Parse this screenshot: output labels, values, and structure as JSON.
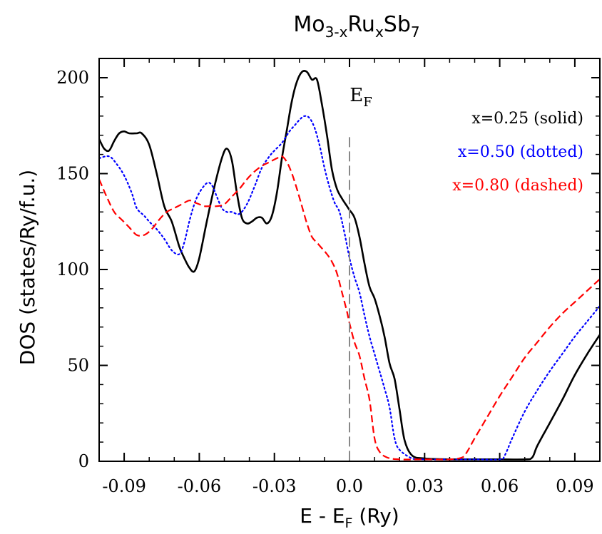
{
  "chart_data": {
    "type": "line",
    "title": {
      "base": "Mo",
      "sub1": "3-x",
      "mid": "Ru",
      "sub2": "x",
      "end": "Sb",
      "sub3": "7"
    },
    "xlabel": {
      "main": "E - E",
      "sub": "F",
      "unit": " (Ry)"
    },
    "ylabel": "DOS (states/Ry/f.u.)",
    "xlim": [
      -0.1,
      0.1
    ],
    "ylim": [
      0,
      210
    ],
    "xticks": [
      "-0.09",
      "-0.06",
      "-0.03",
      "0.0",
      "0.03",
      "0.06",
      "0.09"
    ],
    "yticks": [
      "0",
      "50",
      "100",
      "150",
      "200"
    ],
    "grid": false,
    "annotation": {
      "main": "E",
      "sub": "F",
      "x": 0.0
    },
    "legend_placement": "top-right",
    "legend": [
      {
        "text": "x=0.25 (solid)",
        "color": "#000000"
      },
      {
        "text": "x=0.50 (dotted)",
        "color": "#0000ff"
      },
      {
        "text": "x=0.80 (dashed)",
        "color": "#ff0000"
      }
    ],
    "series": [
      {
        "name": "x=0.25 (solid)",
        "color": "#000000",
        "style": "solid",
        "x": [
          -0.1,
          -0.098,
          -0.096,
          -0.094,
          -0.092,
          -0.09,
          -0.088,
          -0.085,
          -0.083,
          -0.08,
          -0.077,
          -0.074,
          -0.071,
          -0.068,
          -0.066,
          -0.064,
          -0.062,
          -0.06,
          -0.057,
          -0.054,
          -0.051,
          -0.049,
          -0.047,
          -0.045,
          -0.043,
          -0.041,
          -0.039,
          -0.037,
          -0.035,
          -0.033,
          -0.031,
          -0.029,
          -0.027,
          -0.025,
          -0.023,
          -0.021,
          -0.019,
          -0.017,
          -0.015,
          -0.013,
          -0.011,
          -0.009,
          -0.007,
          -0.005,
          -0.003,
          -0.001,
          0.0,
          0.002,
          0.004,
          0.006,
          0.008,
          0.01,
          0.012,
          0.014,
          0.016,
          0.018,
          0.02,
          0.022,
          0.025,
          0.03,
          0.04,
          0.05,
          0.06,
          0.07,
          0.073,
          0.075,
          0.08,
          0.085,
          0.09,
          0.095,
          0.1
        ],
        "y": [
          168,
          163,
          162,
          167,
          171,
          172,
          171,
          171,
          171,
          165,
          150,
          133,
          125,
          112,
          106,
          101,
          99,
          106,
          125,
          143,
          158,
          163,
          157,
          140,
          127,
          124,
          125,
          127,
          127,
          124,
          128,
          140,
          158,
          173,
          188,
          198,
          203,
          203,
          199,
          199,
          186,
          170,
          152,
          142,
          137,
          133,
          131,
          127,
          117,
          103,
          91,
          85,
          76,
          65,
          51,
          43,
          27,
          11,
          3,
          1.5,
          1,
          1,
          1,
          1,
          2,
          8,
          20,
          32,
          45,
          56,
          66
        ]
      },
      {
        "name": "x=0.50 (dotted)",
        "color": "#0000ff",
        "style": "dotted",
        "x": [
          -0.1,
          -0.096,
          -0.093,
          -0.09,
          -0.087,
          -0.085,
          -0.082,
          -0.08,
          -0.077,
          -0.074,
          -0.071,
          -0.068,
          -0.066,
          -0.064,
          -0.062,
          -0.06,
          -0.057,
          -0.055,
          -0.053,
          -0.051,
          -0.049,
          -0.047,
          -0.044,
          -0.041,
          -0.038,
          -0.035,
          -0.032,
          -0.03,
          -0.027,
          -0.024,
          -0.022,
          -0.02,
          -0.018,
          -0.016,
          -0.014,
          -0.012,
          -0.01,
          -0.008,
          -0.006,
          -0.004,
          -0.002,
          0.0,
          0.002,
          0.004,
          0.006,
          0.008,
          0.01,
          0.012,
          0.014,
          0.016,
          0.018,
          0.02,
          0.025,
          0.03,
          0.04,
          0.05,
          0.06,
          0.062,
          0.065,
          0.07,
          0.075,
          0.08,
          0.085,
          0.09,
          0.095,
          0.1
        ],
        "y": [
          158,
          159,
          155,
          149,
          140,
          132,
          128,
          125,
          121,
          116,
          110,
          108,
          114,
          125,
          134,
          140,
          145,
          144,
          138,
          132,
          130,
          130,
          129,
          134,
          143,
          153,
          159,
          162,
          166,
          172,
          175,
          178,
          180,
          179,
          174,
          165,
          153,
          143,
          135,
          130,
          119,
          106,
          96,
          88,
          76,
          65,
          56,
          47,
          38,
          28,
          12,
          6,
          1.5,
          1,
          1,
          1,
          1,
          3,
          12,
          26,
          37,
          47,
          56,
          65,
          73,
          81
        ]
      },
      {
        "name": "x=0.80 (dashed)",
        "color": "#ff0000",
        "style": "dashed",
        "x": [
          -0.1,
          -0.097,
          -0.094,
          -0.091,
          -0.088,
          -0.085,
          -0.082,
          -0.079,
          -0.076,
          -0.073,
          -0.07,
          -0.067,
          -0.064,
          -0.062,
          -0.06,
          -0.058,
          -0.056,
          -0.053,
          -0.05,
          -0.047,
          -0.044,
          -0.041,
          -0.038,
          -0.035,
          -0.032,
          -0.029,
          -0.027,
          -0.025,
          -0.023,
          -0.021,
          -0.019,
          -0.017,
          -0.015,
          -0.013,
          -0.011,
          -0.009,
          -0.007,
          -0.005,
          -0.003,
          -0.001,
          0.0,
          0.002,
          0.004,
          0.006,
          0.008,
          0.01,
          0.012,
          0.015,
          0.02,
          0.03,
          0.04,
          0.045,
          0.047,
          0.05,
          0.055,
          0.06,
          0.065,
          0.07,
          0.075,
          0.08,
          0.085,
          0.09,
          0.095,
          0.1
        ],
        "y": [
          147,
          138,
          130,
          126,
          122,
          118,
          118,
          121,
          126,
          130,
          132,
          134,
          136,
          135,
          134,
          133,
          133,
          133,
          134,
          138,
          142,
          147,
          151,
          154,
          156,
          158,
          159,
          156,
          150,
          142,
          133,
          124,
          117,
          114,
          111,
          108,
          104,
          98,
          88,
          78,
          72,
          62,
          55,
          43,
          32,
          12,
          5,
          2,
          1,
          1,
          1,
          2,
          5,
          12,
          23,
          34,
          44,
          54,
          62,
          70,
          77,
          83,
          89,
          95
        ]
      }
    ]
  }
}
